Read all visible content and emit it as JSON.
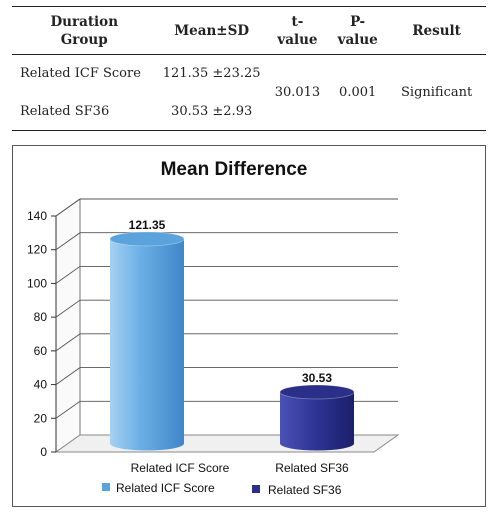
{
  "table": {
    "headers": [
      [
        "Duration",
        "Group"
      ],
      [
        "Mean±SD"
      ],
      [
        "t-",
        "value"
      ],
      [
        "P-",
        "value"
      ],
      [
        "Result"
      ]
    ],
    "rows": [
      {
        "group": "Related ICF Score",
        "mean_sd": "121.35 ±23.25"
      },
      {
        "group": "Related SF36",
        "mean_sd": "30.53 ±2.93"
      }
    ],
    "t_value": "30.013",
    "p_value": "0.001",
    "result": "Significant"
  },
  "chart_data": {
    "type": "bar",
    "title": "Mean Difference",
    "categories": [
      "Related ICF Score",
      "Related SF36"
    ],
    "values": [
      121.35,
      30.53
    ],
    "data_labels": [
      "121.35",
      "30.53"
    ],
    "colors": [
      "#5aa3dd",
      "#2a2f8a"
    ],
    "ylim": [
      0,
      140
    ],
    "yticks": [
      "0",
      "20",
      "40",
      "60",
      "80",
      "100",
      "120",
      "140"
    ],
    "grid": true,
    "legend": {
      "position": "bottom",
      "entries": [
        "Related ICF Score",
        "Related SF36"
      ]
    }
  }
}
